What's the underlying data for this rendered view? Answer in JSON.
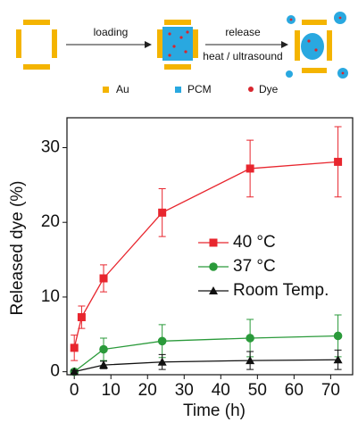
{
  "diagram": {
    "arrow1": "loading",
    "arrow2_top": "release",
    "arrow2_bottom": "heat / ultrasound",
    "legend": [
      "Au",
      "PCM",
      "Dye"
    ]
  },
  "chart_data": {
    "type": "line",
    "x_label": "Time (h)",
    "y_label": "Released dye (%)",
    "xlim": [
      -2,
      76
    ],
    "ylim": [
      -0.4,
      34
    ],
    "xticks": [
      0,
      10,
      20,
      30,
      40,
      50,
      60,
      70
    ],
    "yticks": [
      0,
      10,
      20,
      30
    ],
    "legend": "center-right",
    "series": [
      {
        "name": "40 °C",
        "color": "#e8262e",
        "marker": "square",
        "x": [
          0,
          2,
          8,
          24,
          48,
          72
        ],
        "values": [
          3.2,
          7.3,
          12.5,
          21.3,
          27.2,
          28.1
        ],
        "errors": [
          1.7,
          1.5,
          1.8,
          3.2,
          3.8,
          4.7
        ]
      },
      {
        "name": "37 °C",
        "color": "#2a9a3a",
        "marker": "circle",
        "x": [
          0,
          8,
          24,
          48,
          72
        ],
        "values": [
          0,
          3.0,
          4.1,
          4.5,
          4.8
        ],
        "errors": [
          0.3,
          1.5,
          2.2,
          2.5,
          2.8
        ]
      },
      {
        "name": "Room Temp.",
        "color": "#111111",
        "marker": "triangle",
        "x": [
          0,
          8,
          24,
          48,
          72
        ],
        "values": [
          0,
          0.9,
          1.3,
          1.5,
          1.6
        ],
        "errors": [
          0.2,
          0.5,
          1.0,
          1.2,
          1.3
        ]
      }
    ]
  }
}
